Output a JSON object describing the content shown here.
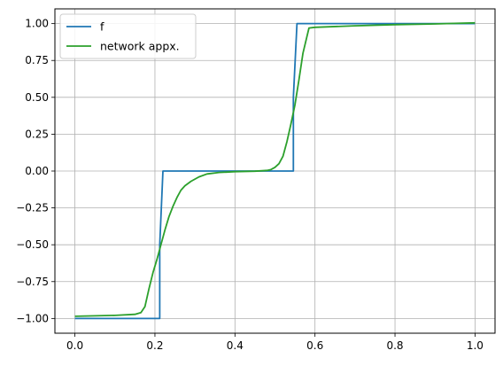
{
  "chart_data": {
    "type": "line",
    "xlim": [
      -0.05,
      1.05
    ],
    "ylim": [
      -1.1,
      1.1
    ],
    "x_ticks": [
      0.0,
      0.2,
      0.4,
      0.6,
      0.8,
      1.0
    ],
    "y_ticks": [
      -1.0,
      -0.75,
      -0.5,
      -0.25,
      0.0,
      0.25,
      0.5,
      0.75,
      1.0
    ],
    "x_tick_labels": [
      "0.0",
      "0.2",
      "0.4",
      "0.6",
      "0.8",
      "1.0"
    ],
    "y_tick_labels": [
      "−1.00",
      "−0.75",
      "−0.50",
      "−0.25",
      "0.00",
      "0.25",
      "0.50",
      "0.75",
      "1.00"
    ],
    "grid": true,
    "legend_position": "top-left",
    "series": [
      {
        "name": "f",
        "color": "#1f77b4",
        "x": [
          0.0,
          0.212,
          0.212,
          0.22,
          0.22,
          0.546,
          0.546,
          0.555,
          0.555,
          1.0
        ],
        "y": [
          -1.0,
          -1.0,
          -0.5,
          0.0,
          0.0,
          0.0,
          0.5,
          1.0,
          1.0,
          1.0
        ]
      },
      {
        "name": "network appx.",
        "color": "#2ca02c",
        "x": [
          0.0,
          0.05,
          0.1,
          0.15,
          0.165,
          0.175,
          0.185,
          0.195,
          0.205,
          0.215,
          0.225,
          0.235,
          0.245,
          0.255,
          0.265,
          0.275,
          0.29,
          0.31,
          0.33,
          0.36,
          0.4,
          0.45,
          0.48,
          0.49,
          0.5,
          0.51,
          0.52,
          0.53,
          0.54,
          0.55,
          0.56,
          0.57,
          0.585,
          0.6,
          0.7,
          0.8,
          0.9,
          1.0
        ],
        "y": [
          -0.985,
          -0.982,
          -0.979,
          -0.972,
          -0.96,
          -0.92,
          -0.8,
          -0.69,
          -0.6,
          -0.5,
          -0.4,
          -0.31,
          -0.24,
          -0.18,
          -0.13,
          -0.1,
          -0.07,
          -0.04,
          -0.02,
          -0.01,
          -0.004,
          -0.001,
          0.004,
          0.01,
          0.025,
          0.05,
          0.1,
          0.2,
          0.32,
          0.45,
          0.62,
          0.8,
          0.97,
          0.975,
          0.985,
          0.993,
          0.998,
          1.005
        ]
      }
    ]
  }
}
